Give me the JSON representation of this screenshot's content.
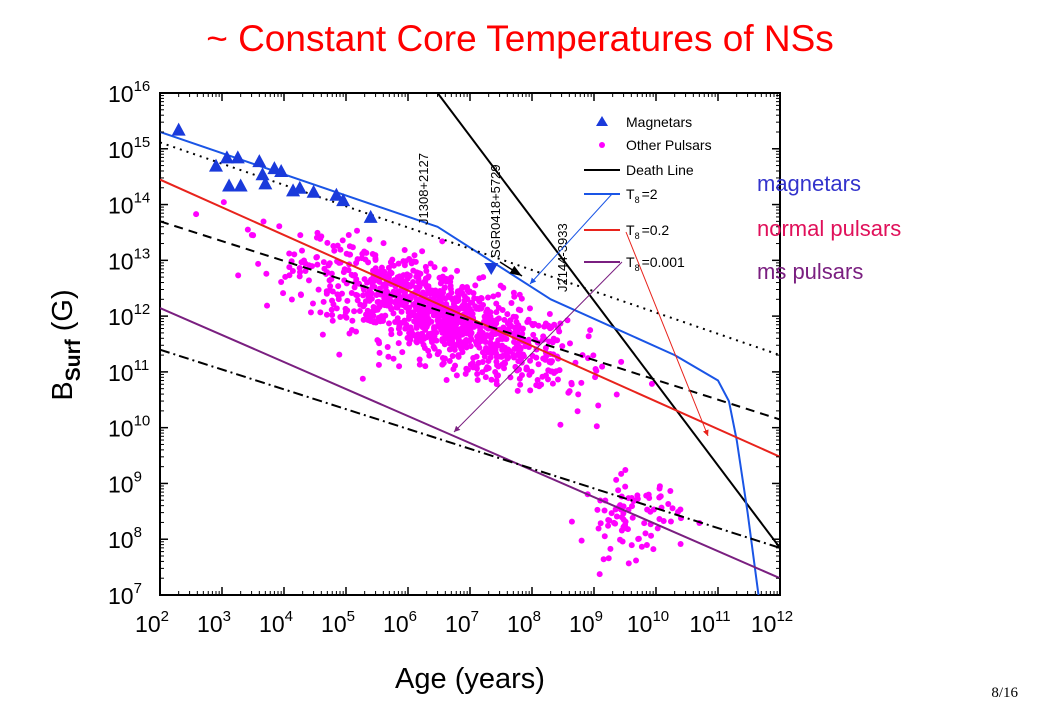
{
  "slide": {
    "title": "~ Constant Core Temperatures of NSs",
    "page_number": "8/16"
  },
  "side_labels": [
    {
      "text": "magnetars",
      "color": "#3333cc"
    },
    {
      "text": "normal pulsars",
      "color": "#e0105a"
    },
    {
      "text": "ms pulsars",
      "color": "#7a1f80"
    }
  ],
  "chart_data": {
    "type": "scatter",
    "xlabel": "Age (years)",
    "ylabel_main": "B",
    "ylabel_sub": "Surf",
    "ylabel_unit": "(G)",
    "x_scale": "log",
    "y_scale": "log",
    "xlim": [
      100,
      1000000000000
    ],
    "ylim": [
      10000000,
      10000000000000000
    ],
    "x_ticks": [
      {
        "base": "10",
        "exp": "2"
      },
      {
        "base": "10",
        "exp": "3"
      },
      {
        "base": "10",
        "exp": "4"
      },
      {
        "base": "10",
        "exp": "5"
      },
      {
        "base": "10",
        "exp": "6"
      },
      {
        "base": "10",
        "exp": "7"
      },
      {
        "base": "10",
        "exp": "8"
      },
      {
        "base": "10",
        "exp": "9"
      },
      {
        "base": "10",
        "exp": "10"
      },
      {
        "base": "10",
        "exp": "11"
      },
      {
        "base": "10",
        "exp": "12"
      }
    ],
    "y_ticks": [
      {
        "base": "10",
        "exp": "7"
      },
      {
        "base": "10",
        "exp": "8"
      },
      {
        "base": "10",
        "exp": "9"
      },
      {
        "base": "10",
        "exp": "10"
      },
      {
        "base": "10",
        "exp": "11"
      },
      {
        "base": "10",
        "exp": "12"
      },
      {
        "base": "10",
        "exp": "13"
      },
      {
        "base": "10",
        "exp": "14"
      },
      {
        "base": "10",
        "exp": "15"
      },
      {
        "base": "10",
        "exp": "16"
      }
    ],
    "colors": {
      "magnetars": "#1a3adb",
      "pulsars": "#ff00ff",
      "death_line": "#000000",
      "t8_2": "#1a55e6",
      "t8_02": "#e8231c",
      "t8_0001": "#7a1f80",
      "ref_lines": "#000000"
    },
    "legend": {
      "position": "top-right",
      "entries": [
        {
          "label": "Magnetars",
          "marker": "triangle",
          "color": "#1a3adb"
        },
        {
          "label": "Other Pulsars",
          "marker": "dot",
          "color": "#ff00ff"
        },
        {
          "label": "Death Line",
          "marker": "line",
          "color": "#000000"
        },
        {
          "label": "T",
          "sub": "8",
          "value": "=2",
          "marker": "line",
          "color": "#1a55e6"
        },
        {
          "label": "T",
          "sub": "8",
          "value": "=0.2",
          "marker": "line",
          "color": "#e8231c"
        },
        {
          "label": "T",
          "sub": "8",
          "value": "=0.001",
          "marker": "line",
          "color": "#7a1f80"
        }
      ]
    },
    "annotations": [
      "J1308+2127",
      "SGR0418+5729",
      "J2144-3933"
    ],
    "series": [
      {
        "name": "Death Line",
        "kind": "line",
        "points": [
          [
            3000000,
            1e+16
          ],
          [
            1000000000000,
            70000000
          ]
        ]
      },
      {
        "name": "T8=2",
        "kind": "line",
        "points": [
          [
            100,
            2000000000000000.0
          ],
          [
            3000000.0,
            40000000000000.0
          ],
          [
            200000000.0,
            2000000000000.0
          ],
          [
            20000000000.0,
            200000000000.0
          ],
          [
            100000000000.0,
            70000000000.0
          ],
          [
            150000000000.0,
            30000000000.0
          ],
          [
            200000000000.0,
            6000000000.0
          ],
          [
            300000000000.0,
            300000000.0
          ],
          [
            450000000000.0,
            10000000.0
          ]
        ]
      },
      {
        "name": "T8=0.2",
        "kind": "line",
        "points": [
          [
            100,
            280000000000000.0
          ],
          [
            1000000000000.0,
            3000000000.0
          ]
        ]
      },
      {
        "name": "T8=0.001",
        "kind": "line",
        "points": [
          [
            100,
            1400000000000.0
          ],
          [
            1000000000000.0,
            20000000.0
          ]
        ]
      },
      {
        "name": "",
        "kind": "dotted",
        "points": [
          [
            100,
            1300000000000000.0
          ],
          [
            1000000000000.0,
            200000000000.0
          ]
        ]
      },
      {
        "name": "",
        "kind": "dashed",
        "points": [
          [
            100,
            50000000000000.0
          ],
          [
            1000000000000.0,
            14000000000.0
          ]
        ]
      },
      {
        "name": "",
        "kind": "dashdot",
        "points": [
          [
            100,
            250000000000.0
          ],
          [
            1000000000000.0,
            70000000.0
          ]
        ]
      }
    ],
    "magnetars": [
      [
        200,
        2200000000000000.0
      ],
      [
        800,
        500000000000000.0
      ],
      [
        1200,
        700000000000000.0
      ],
      [
        1800,
        700000000000000.0
      ],
      [
        1300,
        220000000000000.0
      ],
      [
        2000,
        220000000000000.0
      ],
      [
        4000,
        600000000000000.0
      ],
      [
        4500,
        350000000000000.0
      ],
      [
        5000,
        240000000000000.0
      ],
      [
        7000,
        450000000000000.0
      ],
      [
        9000,
        400000000000000.0
      ],
      [
        14000,
        180000000000000.0
      ],
      [
        18000,
        200000000000000.0
      ],
      [
        30000,
        170000000000000.0
      ],
      [
        70000,
        150000000000000.0
      ],
      [
        90000,
        120000000000000.0
      ],
      [
        250000,
        60000000000000.0
      ],
      [
        22000000.0,
        7000000000000.0
      ]
    ],
    "pulsar_cluster": {
      "count": 1100,
      "center": [
        6.5,
        12.0
      ],
      "spread_along": 1.15,
      "spread_across": 0.38,
      "slope_in_decades": -0.45
    },
    "pulsar_tail": {
      "count": 90,
      "center": [
        9.6,
        8.4
      ],
      "spread_x": 0.4,
      "spread_y": 0.35
    }
  }
}
